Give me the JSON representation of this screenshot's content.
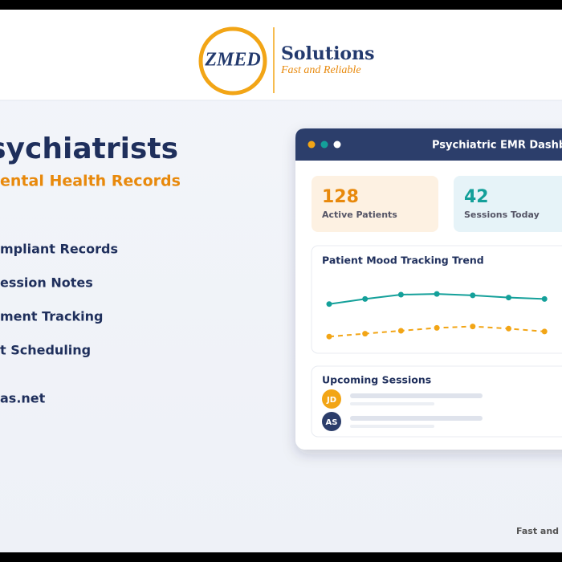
{
  "header": {
    "logo": "ZMED",
    "brand": "Solutions",
    "tagline": "Fast and Reliable"
  },
  "hero": {
    "title": "Psychiatrists",
    "subtitle": "ental Health Records",
    "features": [
      "mpliant Records",
      "ession Notes",
      "ment Tracking",
      "t Scheduling"
    ],
    "website": "as.net"
  },
  "dashboard": {
    "title": "Psychiatric EMR Dashbo",
    "stats": [
      {
        "value": 128,
        "label": "Active Patients",
        "color": "#e8890c"
      },
      {
        "value": 42,
        "label": "Sessions Today",
        "color": "#14a09a"
      }
    ],
    "sessions_title": "Upcoming Sessions",
    "avatars": [
      {
        "initials": "JD",
        "color": "#f2a516"
      },
      {
        "initials": "AS",
        "color": "#2c3e6b"
      }
    ]
  },
  "chart_data": {
    "type": "line",
    "title": "Patient Mood Tracking Trend",
    "categories": [
      null,
      null,
      null,
      null,
      null,
      null,
      null
    ],
    "series": [
      {
        "color": "#14a09a",
        "dashed": false,
        "values": [
          5.7,
          6.4,
          7.0,
          7.1,
          6.9,
          6.6,
          6.4
        ]
      },
      {
        "color": "#f2a516",
        "dashed": true,
        "values": [
          1.2,
          1.6,
          2.0,
          2.4,
          2.6,
          2.3,
          1.9
        ]
      }
    ],
    "ylim": [
      0,
      10
    ]
  },
  "footer": "Fast and I"
}
